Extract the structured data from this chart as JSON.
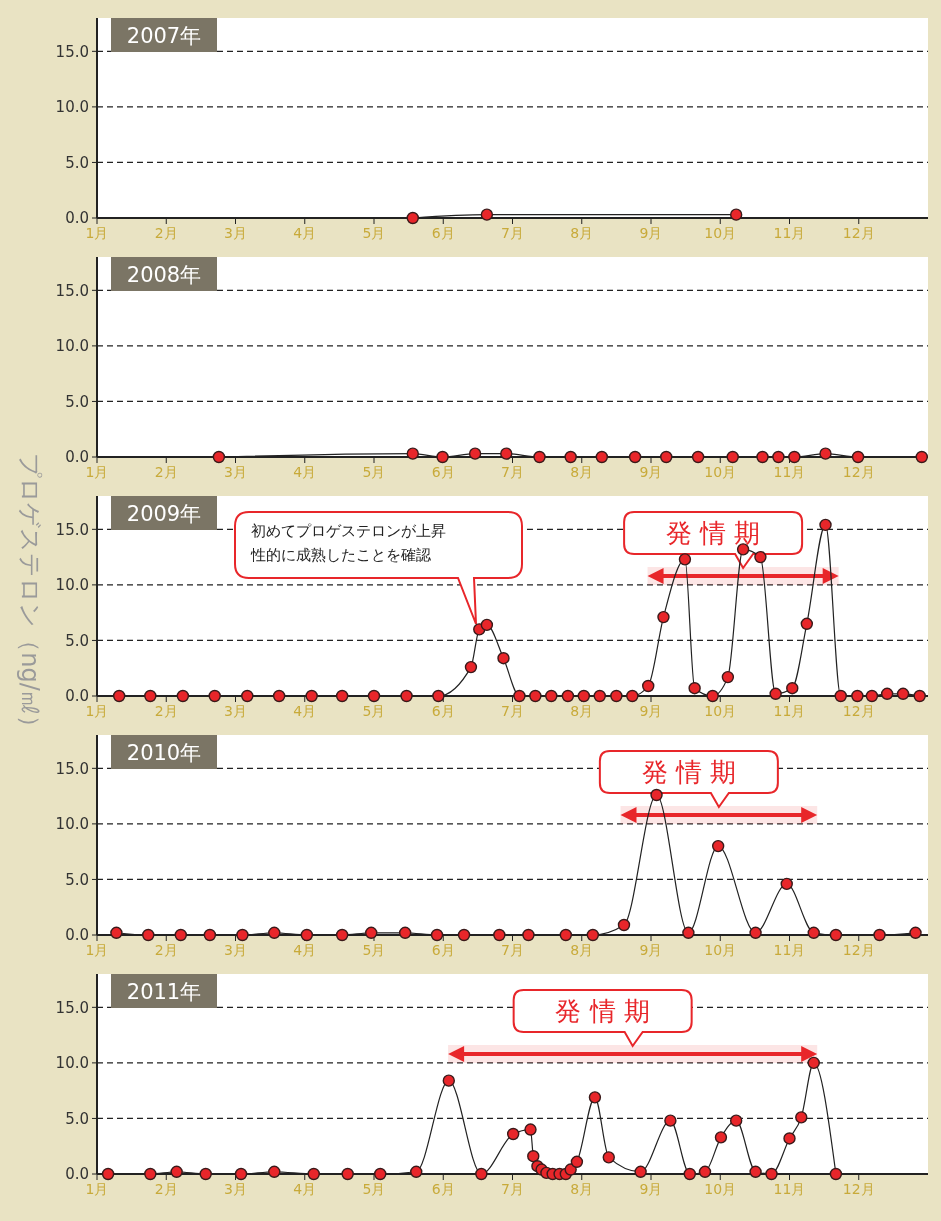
{
  "chart_data": [
    {
      "type": "line",
      "title": "2007年",
      "x": [
        5.56,
        6.63,
        10.23
      ],
      "values": [
        0,
        0.3,
        0.3
      ],
      "color": "#e8262a",
      "marker": "circle",
      "xlim": [
        1,
        13
      ],
      "ylim": [
        0,
        18
      ],
      "xticks": [
        {
          "value": 1,
          "label": "1月"
        },
        {
          "value": 2,
          "label": "2月"
        },
        {
          "value": 3,
          "label": "3月"
        },
        {
          "value": 4,
          "label": "4月"
        },
        {
          "value": 5,
          "label": "5月"
        },
        {
          "value": 6,
          "label": "6月"
        },
        {
          "value": 7,
          "label": "7月"
        },
        {
          "value": 8,
          "label": "8月"
        },
        {
          "value": 9,
          "label": "9月"
        },
        {
          "value": 10,
          "label": "10月"
        },
        {
          "value": 11,
          "label": "11月"
        },
        {
          "value": 12,
          "label": "12月"
        }
      ],
      "yticks": [
        {
          "value": 0,
          "label": "0.0"
        },
        {
          "value": 5,
          "label": "5.0"
        },
        {
          "value": 10,
          "label": "10.0"
        },
        {
          "value": 15,
          "label": "15.0"
        }
      ],
      "grid": "y"
    },
    {
      "type": "line",
      "title": "2008年",
      "x": [
        2.76,
        5.56,
        5.99,
        6.46,
        6.91,
        7.39,
        7.84,
        8.29,
        8.77,
        9.22,
        9.68,
        10.18,
        10.61,
        10.84,
        11.07,
        11.52,
        11.99,
        12.91
      ],
      "values": [
        0,
        0.3,
        0,
        0.3,
        0.3,
        0,
        0,
        0,
        0,
        0,
        0,
        0,
        0,
        0,
        0,
        0.3,
        0,
        0
      ],
      "color": "#e8262a",
      "marker": "circle",
      "xlim": [
        1,
        13
      ],
      "ylim": [
        0,
        18
      ],
      "xticks": [
        {
          "value": 1,
          "label": "1月"
        },
        {
          "value": 2,
          "label": "2月"
        },
        {
          "value": 3,
          "label": "3月"
        },
        {
          "value": 4,
          "label": "4月"
        },
        {
          "value": 5,
          "label": "5月"
        },
        {
          "value": 6,
          "label": "6月"
        },
        {
          "value": 7,
          "label": "7月"
        },
        {
          "value": 8,
          "label": "8月"
        },
        {
          "value": 9,
          "label": "9月"
        },
        {
          "value": 10,
          "label": "10月"
        },
        {
          "value": 11,
          "label": "11月"
        },
        {
          "value": 12,
          "label": "12月"
        }
      ],
      "yticks": [
        {
          "value": 0,
          "label": "0.0"
        },
        {
          "value": 5,
          "label": "5.0"
        },
        {
          "value": 10,
          "label": "10.0"
        },
        {
          "value": 15,
          "label": "15.0"
        }
      ],
      "grid": "y"
    },
    {
      "type": "line",
      "title": "2009年",
      "ylabel": "プロゲステロン（ng/㎖）",
      "x": [
        1.32,
        1.77,
        2.24,
        2.7,
        3.17,
        3.63,
        4.1,
        4.54,
        5.0,
        5.47,
        5.93,
        6.4,
        6.52,
        6.63,
        6.87,
        7.1,
        7.33,
        7.56,
        7.8,
        8.03,
        8.26,
        8.5,
        8.73,
        8.96,
        9.18,
        9.49,
        9.63,
        9.89,
        10.11,
        10.33,
        10.58,
        10.8,
        11.04,
        11.25,
        11.52,
        11.74,
        11.98,
        12.19,
        12.41,
        12.64,
        12.88
      ],
      "values": [
        0,
        0,
        0,
        0,
        0,
        0,
        0,
        0,
        0,
        0,
        0,
        2.6,
        6.0,
        6.4,
        3.4,
        0,
        0,
        0,
        0,
        0,
        0,
        0,
        0,
        0.9,
        7.1,
        12.3,
        0.7,
        0,
        1.7,
        13.2,
        12.5,
        0.2,
        0.7,
        6.5,
        15.4,
        0,
        0,
        0,
        0.2,
        0.2,
        0
      ],
      "color": "#e8262a",
      "marker": "circle",
      "xlim": [
        1,
        13
      ],
      "ylim": [
        0,
        18
      ],
      "xticks": [
        {
          "value": 1,
          "label": "1月"
        },
        {
          "value": 2,
          "label": "2月"
        },
        {
          "value": 3,
          "label": "3月"
        },
        {
          "value": 4,
          "label": "4月"
        },
        {
          "value": 5,
          "label": "5月"
        },
        {
          "value": 6,
          "label": "6月"
        },
        {
          "value": 7,
          "label": "7月"
        },
        {
          "value": 8,
          "label": "8月"
        },
        {
          "value": 9,
          "label": "9月"
        },
        {
          "value": 10,
          "label": "10月"
        },
        {
          "value": 11,
          "label": "11月"
        },
        {
          "value": 12,
          "label": "12月"
        }
      ],
      "yticks": [
        {
          "value": 0,
          "label": "0.0"
        },
        {
          "value": 5,
          "label": "5.0"
        },
        {
          "value": 10,
          "label": "10.0"
        },
        {
          "value": 15,
          "label": "15.0"
        }
      ],
      "grid": "y",
      "annotations": [
        "初めてプロゲステロンが上昇性的に成熟したことを確認"
      ],
      "bands": [
        {
          "axis": "x",
          "from": 8.95,
          "to": 11.71,
          "label": "発 情 期",
          "color": "#e8262a"
        }
      ]
    },
    {
      "type": "line",
      "title": "2010年",
      "x": [
        1.28,
        1.74,
        2.21,
        2.63,
        3.1,
        3.56,
        4.03,
        4.54,
        4.96,
        5.45,
        5.91,
        6.3,
        6.81,
        7.23,
        7.77,
        8.16,
        8.61,
        9.08,
        9.54,
        9.97,
        10.51,
        10.96,
        11.35,
        11.67,
        12.3,
        12.82
      ],
      "values": [
        0.2,
        0,
        0,
        0,
        0,
        0.2,
        0,
        0,
        0.2,
        0.2,
        0,
        0,
        0,
        0,
        0,
        0,
        0.9,
        12.6,
        0.2,
        8.0,
        0.2,
        4.6,
        0.2,
        0,
        0,
        0.2
      ],
      "color": "#e8262a",
      "marker": "circle",
      "xlim": [
        1,
        13
      ],
      "ylim": [
        0,
        18
      ],
      "xticks": [
        {
          "value": 1,
          "label": "1月"
        },
        {
          "value": 2,
          "label": "2月"
        },
        {
          "value": 3,
          "label": "3月"
        },
        {
          "value": 4,
          "label": "4月"
        },
        {
          "value": 5,
          "label": "5月"
        },
        {
          "value": 6,
          "label": "6月"
        },
        {
          "value": 7,
          "label": "7月"
        },
        {
          "value": 8,
          "label": "8月"
        },
        {
          "value": 9,
          "label": "9月"
        },
        {
          "value": 10,
          "label": "10月"
        },
        {
          "value": 11,
          "label": "11月"
        },
        {
          "value": 12,
          "label": "12月"
        }
      ],
      "yticks": [
        {
          "value": 0,
          "label": "0.0"
        },
        {
          "value": 5,
          "label": "5.0"
        },
        {
          "value": 10,
          "label": "10.0"
        },
        {
          "value": 15,
          "label": "15.0"
        }
      ],
      "grid": "y",
      "bands": [
        {
          "axis": "x",
          "from": 8.56,
          "to": 11.4,
          "label": "発 情 期",
          "color": "#e8262a"
        }
      ]
    },
    {
      "type": "line",
      "title": "2011年",
      "x": [
        1.16,
        1.77,
        2.15,
        2.57,
        3.08,
        3.56,
        4.13,
        4.62,
        5.09,
        5.61,
        6.08,
        6.55,
        7.01,
        7.26,
        7.3,
        7.36,
        7.42,
        7.49,
        7.58,
        7.68,
        7.77,
        7.84,
        7.93,
        8.19,
        8.39,
        8.85,
        9.28,
        9.56,
        9.78,
        10.01,
        10.23,
        10.51,
        10.74,
        11.0,
        11.17,
        11.35,
        11.67
      ],
      "values": [
        0,
        0,
        0.2,
        0,
        0,
        0.2,
        0,
        0,
        0,
        0.2,
        8.4,
        0,
        3.6,
        4.0,
        1.6,
        0.7,
        0.4,
        0.1,
        0,
        0,
        0,
        0.4,
        1.1,
        6.9,
        1.5,
        0.2,
        4.8,
        0,
        0.2,
        3.3,
        4.8,
        0.2,
        0,
        3.2,
        5.1,
        10.0,
        0
      ],
      "color": "#e8262a",
      "marker": "circle",
      "xlim": [
        1,
        13
      ],
      "ylim": [
        0,
        18
      ],
      "xticks": [
        {
          "value": 1,
          "label": "1月"
        },
        {
          "value": 2,
          "label": "2月"
        },
        {
          "value": 3,
          "label": "3月"
        },
        {
          "value": 4,
          "label": "4月"
        },
        {
          "value": 5,
          "label": "5月"
        },
        {
          "value": 6,
          "label": "6月"
        },
        {
          "value": 7,
          "label": "7月"
        },
        {
          "value": 8,
          "label": "8月"
        },
        {
          "value": 9,
          "label": "9月"
        },
        {
          "value": 10,
          "label": "10月"
        },
        {
          "value": 11,
          "label": "11月"
        },
        {
          "value": 12,
          "label": "12月"
        }
      ],
      "yticks": [
        {
          "value": 0,
          "label": "0.0"
        },
        {
          "value": 5,
          "label": "5.0"
        },
        {
          "value": 10,
          "label": "10.0"
        },
        {
          "value": 15,
          "label": "15.0"
        }
      ],
      "grid": "y",
      "bands": [
        {
          "axis": "x",
          "from": 6.07,
          "to": 11.4,
          "label": "発 情 期",
          "color": "#e8262a"
        }
      ]
    }
  ]
}
